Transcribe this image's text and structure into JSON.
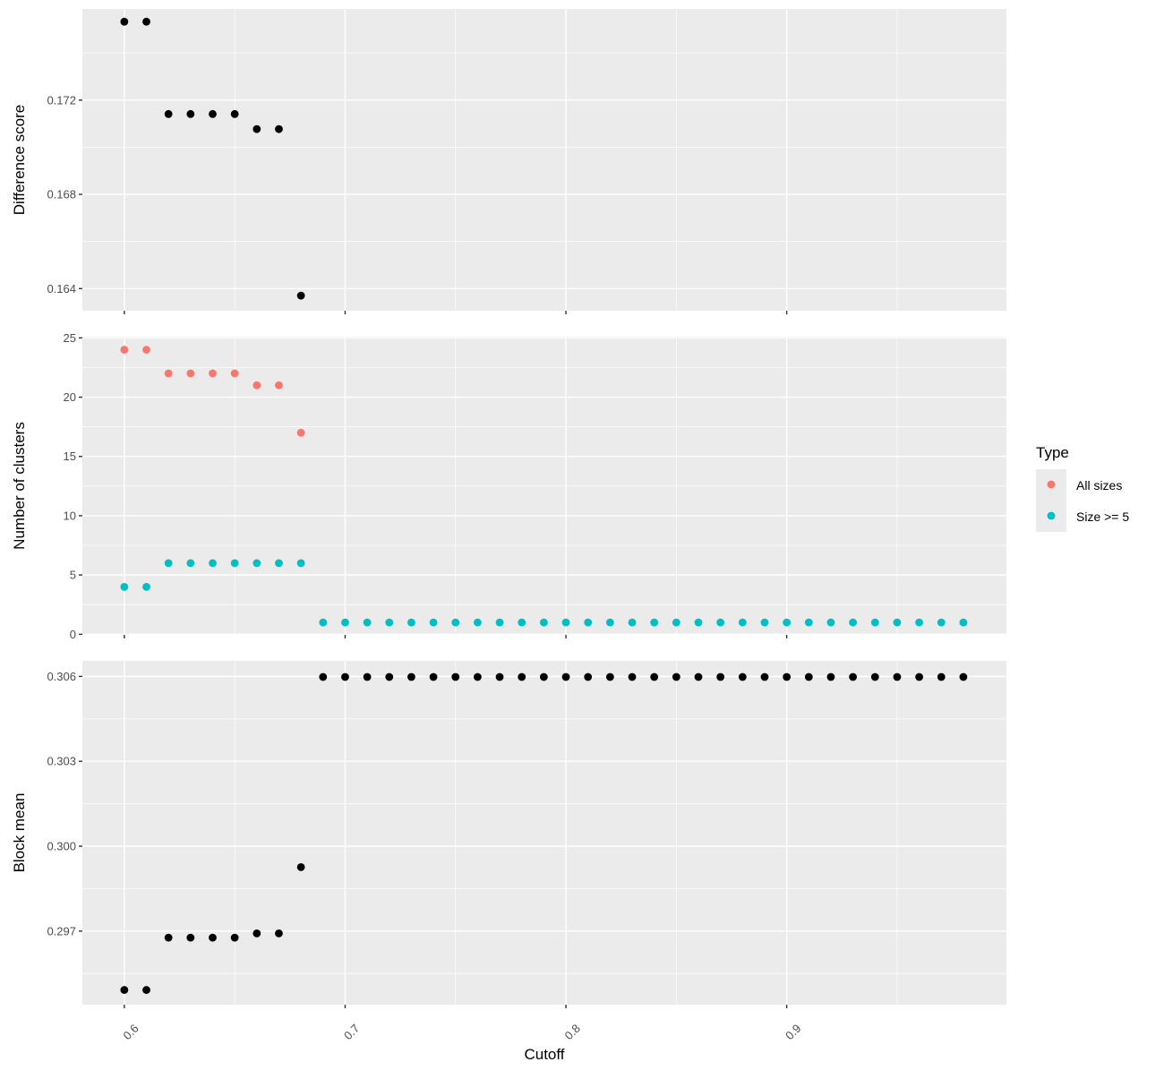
{
  "chart_data": {
    "type": "scatter",
    "x_label": "Cutoff",
    "x_ticks": [
      0.6,
      0.7,
      0.8,
      0.9
    ],
    "x_tick_labels": [
      "0.6",
      "0.7",
      "0.8",
      "0.9"
    ],
    "x_range": [
      0.581,
      0.9995
    ],
    "grid": true,
    "legend": {
      "title": "Type",
      "placement": "right",
      "entries": [
        {
          "label": "All sizes",
          "color": "#F8766D"
        },
        {
          "label": "Size >= 5",
          "color": "#00BFC4"
        }
      ]
    },
    "panels": [
      {
        "id": "difference",
        "ylabel": "Difference score",
        "ylim": [
          0.16306,
          0.17587
        ],
        "y_ticks": [
          0.164,
          0.168,
          0.172
        ],
        "y_tick_labels": [
          "0.164",
          "0.168",
          "0.172"
        ],
        "series": [
          {
            "color": "#000000",
            "x": [
              0.6,
              0.61,
              0.62,
              0.63,
              0.64,
              0.65,
              0.66,
              0.67,
              0.68
            ],
            "y": [
              0.17533,
              0.17533,
              0.17141,
              0.17141,
              0.17141,
              0.17141,
              0.17077,
              0.17077,
              0.1637
            ]
          }
        ]
      },
      {
        "id": "clusters",
        "ylabel": "Number of clusters",
        "ylim": [
          -0.05,
          25.1
        ],
        "y_ticks": [
          0,
          5,
          10,
          15,
          20,
          25
        ],
        "y_tick_labels": [
          "0",
          "5",
          "10",
          "15",
          "20",
          "25"
        ],
        "series": [
          {
            "name": "All sizes",
            "color": "#F8766D",
            "x": [
              0.6,
              0.61,
              0.62,
              0.63,
              0.64,
              0.65,
              0.66,
              0.67,
              0.68
            ],
            "y": [
              24,
              24,
              22,
              22,
              22,
              22,
              21,
              21,
              17
            ]
          },
          {
            "name": "Size >= 5",
            "color": "#00BFC4",
            "x": [
              0.6,
              0.61,
              0.62,
              0.63,
              0.64,
              0.65,
              0.66,
              0.67,
              0.68,
              0.69,
              0.7,
              0.71,
              0.72,
              0.73,
              0.74,
              0.75,
              0.76,
              0.77,
              0.78,
              0.79,
              0.8,
              0.81,
              0.82,
              0.83,
              0.84,
              0.85,
              0.86,
              0.87,
              0.88,
              0.89,
              0.9,
              0.91,
              0.92,
              0.93,
              0.94,
              0.95,
              0.96,
              0.97,
              0.98
            ],
            "y": [
              4,
              4,
              6,
              6,
              6,
              6,
              6,
              6,
              6,
              1,
              1,
              1,
              1,
              1,
              1,
              1,
              1,
              1,
              1,
              1,
              1,
              1,
              1,
              1,
              1,
              1,
              1,
              1,
              1,
              1,
              1,
              1,
              1,
              1,
              1,
              1,
              1,
              1,
              1
            ]
          }
        ]
      },
      {
        "id": "block-mean",
        "ylabel": "Block mean",
        "ylim": [
          0.2944,
          0.30655
        ],
        "y_ticks": [
          0.297,
          0.3,
          0.303,
          0.306
        ],
        "y_tick_labels": [
          "0.297",
          "0.300",
          "0.303",
          "0.306"
        ],
        "series": [
          {
            "color": "#000000",
            "x": [
              0.6,
              0.61,
              0.62,
              0.63,
              0.64,
              0.65,
              0.66,
              0.67,
              0.68,
              0.69,
              0.7,
              0.71,
              0.72,
              0.73,
              0.74,
              0.75,
              0.76,
              0.77,
              0.78,
              0.79,
              0.8,
              0.81,
              0.82,
              0.83,
              0.84,
              0.85,
              0.86,
              0.87,
              0.88,
              0.89,
              0.9,
              0.91,
              0.92,
              0.93,
              0.94,
              0.95,
              0.96,
              0.97,
              0.98
            ],
            "y": [
              0.29492,
              0.29492,
              0.29677,
              0.29677,
              0.29677,
              0.29677,
              0.29692,
              0.29692,
              0.29926,
              0.30598,
              0.30598,
              0.30598,
              0.30598,
              0.30598,
              0.30598,
              0.30598,
              0.30598,
              0.30598,
              0.30598,
              0.30598,
              0.30598,
              0.30598,
              0.30598,
              0.30598,
              0.30598,
              0.30598,
              0.30598,
              0.30598,
              0.30598,
              0.30598,
              0.30598,
              0.30598,
              0.30598,
              0.30598,
              0.30598,
              0.30598,
              0.30598,
              0.30598,
              0.30598
            ]
          }
        ]
      }
    ]
  }
}
